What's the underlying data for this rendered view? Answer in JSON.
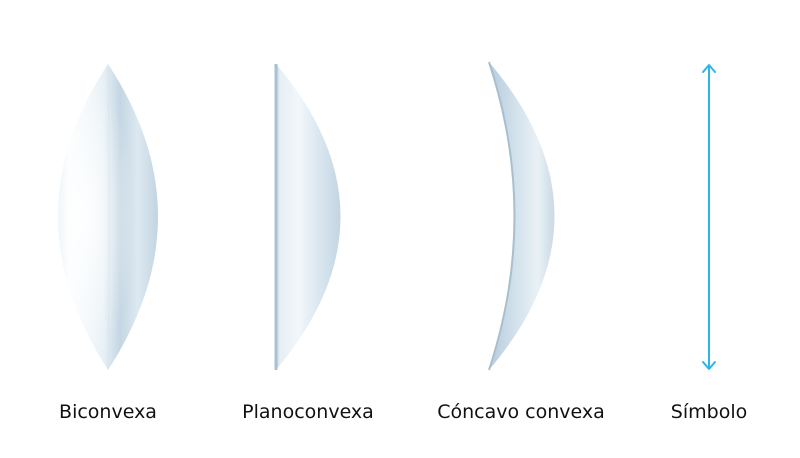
{
  "figure": {
    "lenses": [
      {
        "id": "biconvex",
        "label": "Biconvexa"
      },
      {
        "id": "planoconvex",
        "label": "Planoconvexa"
      },
      {
        "id": "concave-convex",
        "label": "Cóncavo convexa"
      }
    ],
    "symbol": {
      "label": "Símbolo",
      "color": "#29b6e8"
    },
    "colors": {
      "lens_light": "#f7fbfd",
      "lens_mid": "#dbe8f0",
      "lens_shadow": "#b9cddc"
    }
  }
}
